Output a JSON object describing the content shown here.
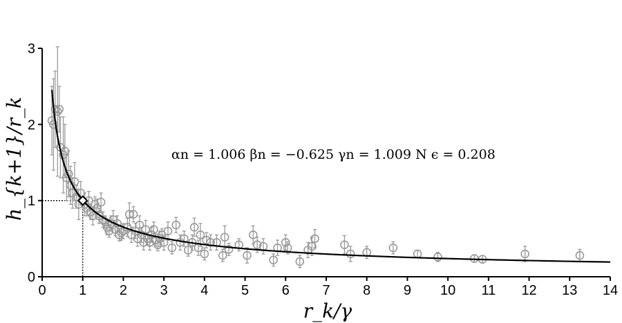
{
  "chart_data": {
    "type": "scatter",
    "xlabel": "r_k/γ",
    "ylabel": "h_{k+1}/r_k",
    "xlim": [
      0,
      14
    ],
    "ylim": [
      0,
      3
    ],
    "x_ticks": [
      "0",
      "1",
      "2",
      "3",
      "4",
      "5",
      "6",
      "7",
      "8",
      "9",
      "10",
      "11",
      "12",
      "13",
      "14"
    ],
    "y_ticks": [
      "0",
      "1",
      "2",
      "3"
    ],
    "annotation": "αn = 1.006  βn = −0.625  γn = 1.009 N  ϵ = 0.208",
    "fit": {
      "a": 1.006,
      "b": -0.625,
      "gamma": 1.009,
      "eps": 0.208
    },
    "reference_point": {
      "x": 1.0,
      "y": 1.0
    },
    "colors": {
      "points": "#999999",
      "fit": "#000000",
      "ref_marker": "#ffffff"
    },
    "points": [
      {
        "x": 0.24,
        "y": 2.05,
        "err": 0.45
      },
      {
        "x": 0.28,
        "y": 2.0,
        "err": 0.6
      },
      {
        "x": 0.32,
        "y": 2.2,
        "err": 0.5
      },
      {
        "x": 0.38,
        "y": 2.17,
        "err": 0.85
      },
      {
        "x": 0.42,
        "y": 2.2,
        "err": 0.3
      },
      {
        "x": 0.45,
        "y": 1.7,
        "err": 0.4
      },
      {
        "x": 0.52,
        "y": 1.6,
        "err": 0.5
      },
      {
        "x": 0.56,
        "y": 1.65,
        "err": 0.35
      },
      {
        "x": 0.6,
        "y": 1.3,
        "err": 0.3
      },
      {
        "x": 0.65,
        "y": 1.35,
        "err": 0.3
      },
      {
        "x": 0.7,
        "y": 1.2,
        "err": 0.25
      },
      {
        "x": 0.75,
        "y": 1.1,
        "err": 0.2
      },
      {
        "x": 0.8,
        "y": 1.25,
        "err": 0.25
      },
      {
        "x": 0.85,
        "y": 1.05,
        "err": 0.15
      },
      {
        "x": 0.9,
        "y": 0.95,
        "err": 0.2
      },
      {
        "x": 0.95,
        "y": 1.1,
        "err": 0.15
      },
      {
        "x": 1.05,
        "y": 0.95,
        "err": 0.15
      },
      {
        "x": 1.1,
        "y": 0.9,
        "err": 0.1
      },
      {
        "x": 1.15,
        "y": 1.0,
        "err": 0.12
      },
      {
        "x": 1.2,
        "y": 0.85,
        "err": 0.1
      },
      {
        "x": 1.25,
        "y": 0.8,
        "err": 0.12
      },
      {
        "x": 1.3,
        "y": 0.95,
        "err": 0.1
      },
      {
        "x": 1.35,
        "y": 0.9,
        "err": 0.12
      },
      {
        "x": 1.4,
        "y": 0.8,
        "err": 0.1
      },
      {
        "x": 1.45,
        "y": 0.98,
        "err": 0.12
      },
      {
        "x": 1.5,
        "y": 0.75,
        "err": 0.1
      },
      {
        "x": 1.55,
        "y": 0.72,
        "err": 0.08
      },
      {
        "x": 1.6,
        "y": 0.65,
        "err": 0.1
      },
      {
        "x": 1.65,
        "y": 0.6,
        "err": 0.08
      },
      {
        "x": 1.7,
        "y": 0.7,
        "err": 0.1
      },
      {
        "x": 1.75,
        "y": 0.75,
        "err": 0.12
      },
      {
        "x": 1.8,
        "y": 0.62,
        "err": 0.08
      },
      {
        "x": 1.85,
        "y": 0.7,
        "err": 0.1
      },
      {
        "x": 1.9,
        "y": 0.55,
        "err": 0.08
      },
      {
        "x": 1.95,
        "y": 0.58,
        "err": 0.1
      },
      {
        "x": 2.0,
        "y": 0.6,
        "err": 0.1
      },
      {
        "x": 2.1,
        "y": 0.65,
        "err": 0.12
      },
      {
        "x": 2.15,
        "y": 0.82,
        "err": 0.15
      },
      {
        "x": 2.2,
        "y": 0.55,
        "err": 0.1
      },
      {
        "x": 2.25,
        "y": 0.82,
        "err": 0.1
      },
      {
        "x": 2.3,
        "y": 0.6,
        "err": 0.1
      },
      {
        "x": 2.35,
        "y": 0.5,
        "err": 0.1
      },
      {
        "x": 2.4,
        "y": 0.68,
        "err": 0.12
      },
      {
        "x": 2.45,
        "y": 0.55,
        "err": 0.1
      },
      {
        "x": 2.5,
        "y": 0.45,
        "err": 0.1
      },
      {
        "x": 2.55,
        "y": 0.62,
        "err": 0.12
      },
      {
        "x": 2.6,
        "y": 0.5,
        "err": 0.08
      },
      {
        "x": 2.65,
        "y": 0.45,
        "err": 0.1
      },
      {
        "x": 2.7,
        "y": 0.55,
        "err": 0.1
      },
      {
        "x": 2.75,
        "y": 0.62,
        "err": 0.1
      },
      {
        "x": 2.8,
        "y": 0.48,
        "err": 0.08
      },
      {
        "x": 2.85,
        "y": 0.42,
        "err": 0.08
      },
      {
        "x": 2.9,
        "y": 0.5,
        "err": 0.1
      },
      {
        "x": 2.95,
        "y": 0.55,
        "err": 0.08
      },
      {
        "x": 3.0,
        "y": 0.45,
        "err": 0.1
      },
      {
        "x": 3.1,
        "y": 0.6,
        "err": 0.12
      },
      {
        "x": 3.2,
        "y": 0.38,
        "err": 0.08
      },
      {
        "x": 3.3,
        "y": 0.68,
        "err": 0.1
      },
      {
        "x": 3.4,
        "y": 0.45,
        "err": 0.1
      },
      {
        "x": 3.5,
        "y": 0.5,
        "err": 0.1
      },
      {
        "x": 3.6,
        "y": 0.35,
        "err": 0.08
      },
      {
        "x": 3.7,
        "y": 0.45,
        "err": 0.1
      },
      {
        "x": 3.75,
        "y": 0.65,
        "err": 0.12
      },
      {
        "x": 3.85,
        "y": 0.38,
        "err": 0.1
      },
      {
        "x": 3.9,
        "y": 0.55,
        "err": 0.15
      },
      {
        "x": 4.0,
        "y": 0.3,
        "err": 0.08
      },
      {
        "x": 4.05,
        "y": 0.48,
        "err": 0.1
      },
      {
        "x": 4.15,
        "y": 0.45,
        "err": 0.1
      },
      {
        "x": 4.3,
        "y": 0.45,
        "err": 0.1
      },
      {
        "x": 4.45,
        "y": 0.28,
        "err": 0.08
      },
      {
        "x": 4.5,
        "y": 0.52,
        "err": 0.15
      },
      {
        "x": 4.6,
        "y": 0.36,
        "err": 0.08
      },
      {
        "x": 4.85,
        "y": 0.42,
        "err": 0.08
      },
      {
        "x": 5.05,
        "y": 0.28,
        "err": 0.1
      },
      {
        "x": 5.2,
        "y": 0.55,
        "err": 0.12
      },
      {
        "x": 5.3,
        "y": 0.42,
        "err": 0.1
      },
      {
        "x": 5.45,
        "y": 0.4,
        "err": 0.1
      },
      {
        "x": 5.7,
        "y": 0.22,
        "err": 0.08
      },
      {
        "x": 5.8,
        "y": 0.38,
        "err": 0.1
      },
      {
        "x": 6.0,
        "y": 0.45,
        "err": 0.1
      },
      {
        "x": 6.05,
        "y": 0.38,
        "err": 0.08
      },
      {
        "x": 6.35,
        "y": 0.2,
        "err": 0.08
      },
      {
        "x": 6.55,
        "y": 0.35,
        "err": 0.1
      },
      {
        "x": 6.65,
        "y": 0.4,
        "err": 0.12
      },
      {
        "x": 6.72,
        "y": 0.5,
        "err": 0.12
      },
      {
        "x": 7.45,
        "y": 0.42,
        "err": 0.12
      },
      {
        "x": 7.6,
        "y": 0.3,
        "err": 0.1
      },
      {
        "x": 8.0,
        "y": 0.32,
        "err": 0.08
      },
      {
        "x": 8.65,
        "y": 0.38,
        "err": 0.08
      },
      {
        "x": 9.25,
        "y": 0.3,
        "err": 0.05
      },
      {
        "x": 9.75,
        "y": 0.26,
        "err": 0.06
      },
      {
        "x": 10.65,
        "y": 0.24,
        "err": 0.05
      },
      {
        "x": 10.85,
        "y": 0.23,
        "err": 0.05
      },
      {
        "x": 11.9,
        "y": 0.3,
        "err": 0.1
      },
      {
        "x": 13.25,
        "y": 0.28,
        "err": 0.08
      }
    ]
  }
}
